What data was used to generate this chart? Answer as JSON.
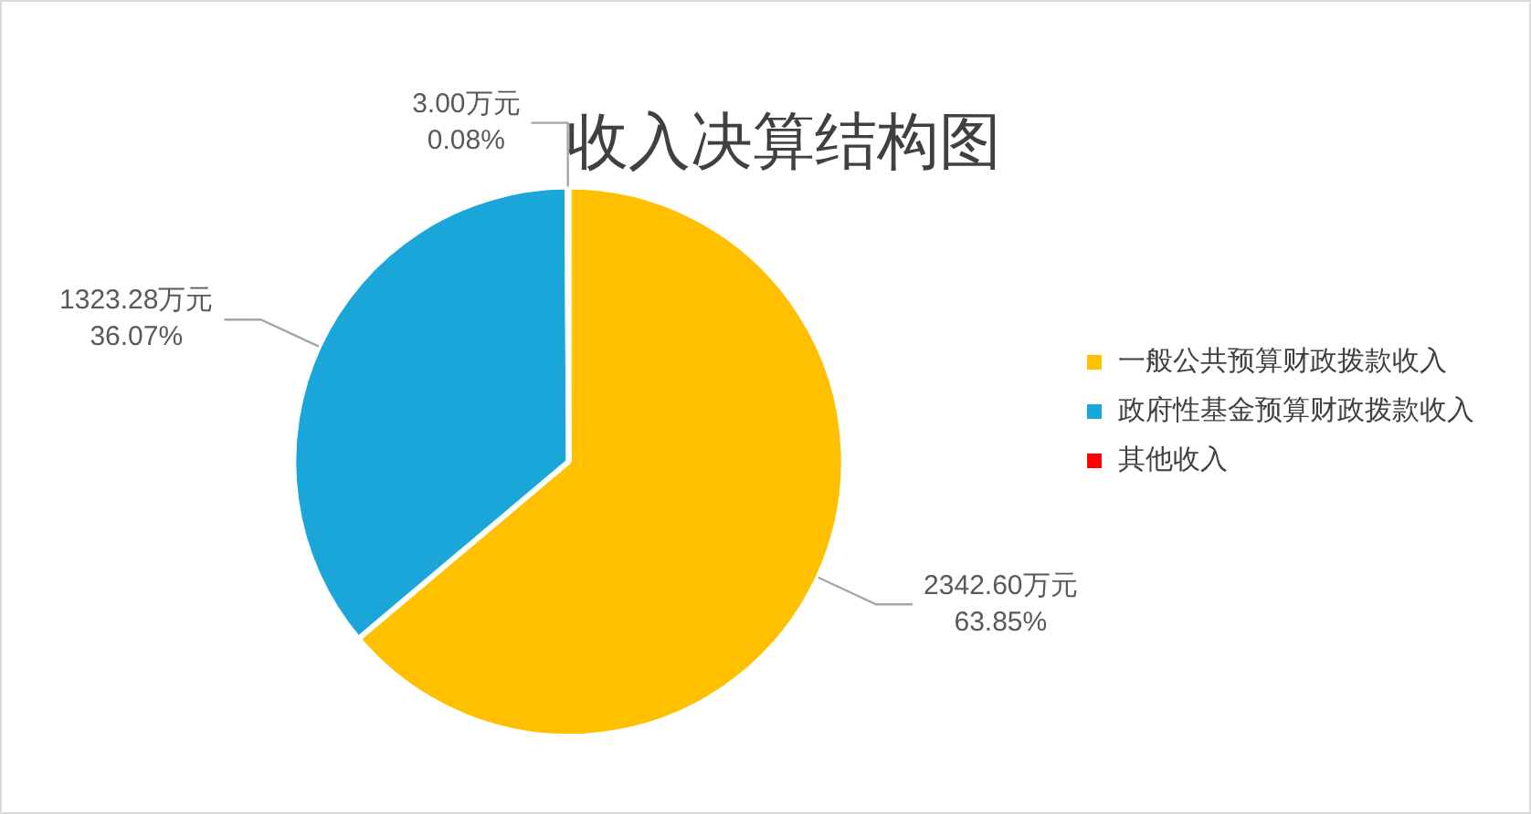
{
  "chart_data": {
    "type": "pie",
    "title": "收入决算结构图",
    "categories": [
      "一般公共预算财政拨款收入",
      "政府性基金预算财政拨款收入",
      "其他收入"
    ],
    "values": [
      2342.6,
      1323.28,
      3.0
    ],
    "colors": [
      "#ffc000",
      "#1ba6da",
      "#ff0000"
    ],
    "value_labels": [
      "2342.60万元\n63.85%",
      "1323.28万元\n36.07%",
      "3.00万元\n0.08%"
    ],
    "legend": "right"
  }
}
